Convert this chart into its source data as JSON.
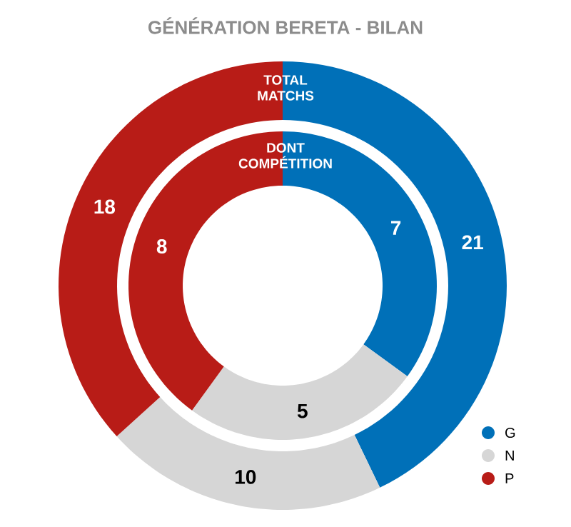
{
  "chart_data": {
    "type": "donut",
    "title": "GÉNÉRATION BERETA - BILAN",
    "categories": [
      "G",
      "N",
      "P"
    ],
    "colors": [
      "#0070b8",
      "#d6d6d6",
      "#b81c17"
    ],
    "series": [
      {
        "name": "TOTAL MATCHS",
        "values": [
          21,
          10,
          18
        ]
      },
      {
        "name": "DONT COMPÉTITION",
        "values": [
          7,
          5,
          8
        ]
      }
    ],
    "data_labels": true,
    "legend": "bottom right"
  }
}
